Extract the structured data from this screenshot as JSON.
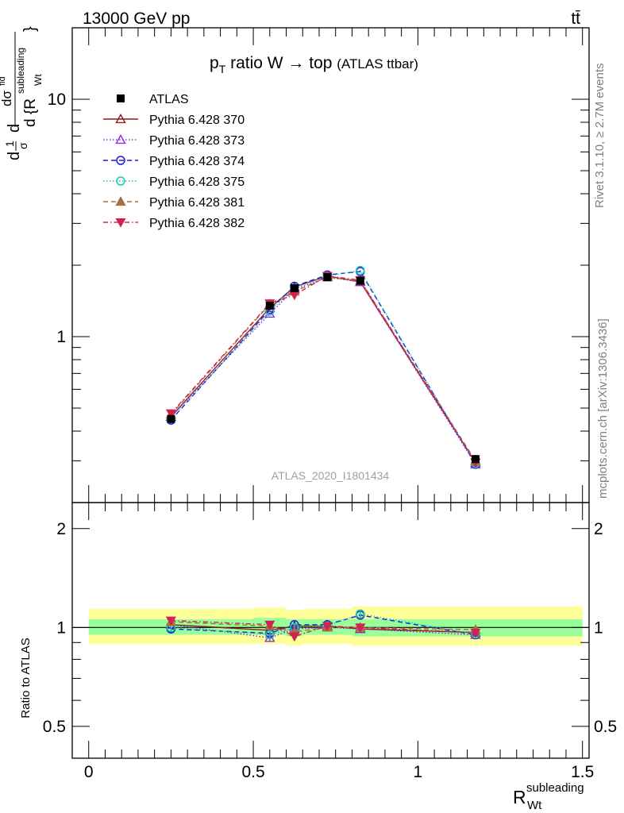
{
  "header": {
    "energy_label": "13000 GeV pp",
    "process_label": "tt̄"
  },
  "side_labels": {
    "rivet": "Rivet 3.1.10, ≥ 2.7M events",
    "mcplots": "mcplots.cern.ch [arXiv:1306.3436]"
  },
  "watermark": "ATLAS_2020_I1801434",
  "chart_data": [
    {
      "type": "line",
      "panel": "main",
      "title_main": "p",
      "title_sub": "T",
      "title_rest": " ratio W → top",
      "title_small": "(ATLAS ttbar)",
      "ylabel_parts": [
        "d",
        "1",
        "σ",
        "d",
        "dσ",
        "fid",
        "d {R",
        "subleading",
        "Wt",
        "}"
      ],
      "y_scale": "log",
      "xlim": [
        -0.05,
        1.52
      ],
      "ylim": [
        0.2,
        20
      ],
      "y_tick_labels": [
        {
          "v": 1,
          "label": "1"
        },
        {
          "v": 10,
          "label": "10"
        }
      ],
      "legend_position": "top-left",
      "data_series": {
        "name": "ATLAS",
        "x": [
          0.25,
          0.55,
          0.625,
          0.725,
          0.825,
          1.175
        ],
        "y": [
          0.45,
          1.35,
          1.6,
          1.78,
          1.72,
          0.305
        ]
      },
      "series": [
        {
          "name": "Pythia 6.428 370",
          "color": "#8b1a1a",
          "dash": "",
          "marker": "triangle-up-open",
          "y": [
            0.46,
            1.32,
            1.62,
            1.8,
            1.7,
            0.295
          ]
        },
        {
          "name": "Pythia 6.428 373",
          "color": "#8a2be2",
          "dash": "1.5,2.5",
          "marker": "triangle-up-open",
          "y": [
            0.46,
            1.25,
            1.58,
            1.78,
            1.7,
            0.29
          ]
        },
        {
          "name": "Pythia 6.428 374",
          "color": "#1c1cdc",
          "dash": "6,4",
          "marker": "circle-open",
          "y": [
            0.445,
            1.3,
            1.63,
            1.82,
            1.88,
            0.29
          ]
        },
        {
          "name": "Pythia 6.428 375",
          "color": "#1ec8b4",
          "dash": "1.5,2.5",
          "marker": "circle-open",
          "y": [
            0.45,
            1.28,
            1.6,
            1.8,
            1.9,
            0.292
          ]
        },
        {
          "name": "Pythia 6.428 381",
          "color": "#a87040",
          "dash": "6,4",
          "marker": "triangle-up-filled",
          "y": [
            0.47,
            1.37,
            1.55,
            1.78,
            1.72,
            0.3
          ]
        },
        {
          "name": "Pythia 6.428 382",
          "color": "#d62050",
          "dash": "6,3,1.5,3",
          "marker": "triangle-down-filled",
          "y": [
            0.475,
            1.38,
            1.5,
            1.8,
            1.73,
            0.295
          ]
        }
      ]
    },
    {
      "type": "line",
      "panel": "ratio",
      "ylabel": "Ratio to ATLAS",
      "xlabel_main": "R",
      "xlabel_sup": "subleading",
      "xlabel_sub": "Wt",
      "xlim": [
        -0.05,
        1.52
      ],
      "ylim": [
        0.4,
        2.4
      ],
      "y_scale": "log",
      "x_tick_labels": [
        {
          "v": 0,
          "label": "0"
        },
        {
          "v": 0.5,
          "label": "0.5"
        },
        {
          "v": 1,
          "label": "1"
        },
        {
          "v": 1.5,
          "label": "1.5"
        }
      ],
      "y_tick_labels": [
        {
          "v": 0.5,
          "label": "0.5"
        },
        {
          "v": 1,
          "label": "1"
        },
        {
          "v": 2,
          "label": "2"
        }
      ],
      "bands": [
        {
          "x0": 0.0,
          "x1": 0.5,
          "inner": [
            0.95,
            1.06
          ],
          "outer": [
            0.89,
            1.14
          ]
        },
        {
          "x0": 0.5,
          "x1": 0.6,
          "inner": [
            0.95,
            1.07
          ],
          "outer": [
            0.89,
            1.15
          ]
        },
        {
          "x0": 0.6,
          "x1": 0.65,
          "inner": [
            0.94,
            1.06
          ],
          "outer": [
            0.88,
            1.13
          ]
        },
        {
          "x0": 0.65,
          "x1": 0.8,
          "inner": [
            0.95,
            1.06
          ],
          "outer": [
            0.89,
            1.14
          ]
        },
        {
          "x0": 0.8,
          "x1": 1.5,
          "inner": [
            0.94,
            1.06
          ],
          "outer": [
            0.88,
            1.16
          ]
        }
      ],
      "series": [
        {
          "name": "Pythia 6.428 370",
          "y": [
            1.02,
            0.98,
            1.01,
            1.01,
            0.99,
            0.965
          ]
        },
        {
          "name": "Pythia 6.428 373",
          "y": [
            1.02,
            0.93,
            0.99,
            1.0,
            0.99,
            0.95
          ]
        },
        {
          "name": "Pythia 6.428 374",
          "y": [
            0.99,
            0.96,
            1.02,
            1.02,
            1.09,
            0.95
          ]
        },
        {
          "name": "Pythia 6.428 375",
          "y": [
            1.0,
            0.95,
            1.0,
            1.01,
            1.1,
            0.955
          ]
        },
        {
          "name": "Pythia 6.428 381",
          "y": [
            1.04,
            1.01,
            0.97,
            1.0,
            1.0,
            0.985
          ]
        },
        {
          "name": "Pythia 6.428 382",
          "y": [
            1.05,
            1.02,
            0.94,
            1.01,
            1.0,
            0.965
          ]
        }
      ]
    }
  ]
}
